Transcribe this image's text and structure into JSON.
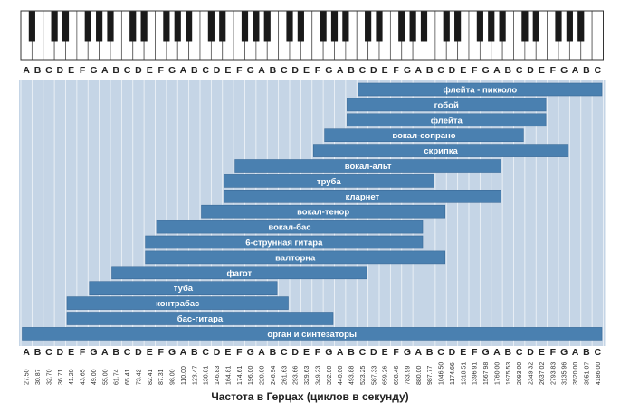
{
  "chart_data": {
    "type": "bar",
    "orientation": "horizontal-range",
    "xlabel": "Частота в Герцах (циклов в секунду)",
    "note_names": [
      "A",
      "B",
      "C",
      "D",
      "E",
      "F",
      "G",
      "A",
      "B",
      "C",
      "D",
      "E",
      "F",
      "G",
      "A",
      "B",
      "C",
      "D",
      "E",
      "F",
      "G",
      "A",
      "B",
      "C",
      "D",
      "E",
      "F",
      "G",
      "A",
      "B",
      "C",
      "D",
      "E",
      "F",
      "G",
      "A",
      "B",
      "C",
      "D",
      "E",
      "F",
      "G",
      "A",
      "B",
      "C",
      "D",
      "E",
      "F",
      "G",
      "A",
      "B",
      "C"
    ],
    "frequencies": [
      "27.50",
      "30.87",
      "32.70",
      "36.71",
      "41.20",
      "43.65",
      "49.00",
      "55.00",
      "61.74",
      "65.41",
      "73.42",
      "82.41",
      "87.31",
      "98.00",
      "110.00",
      "123.47",
      "130.81",
      "146.83",
      "164.81",
      "174.61",
      "196.00",
      "220.00",
      "246.94",
      "261.63",
      "293.66",
      "329.63",
      "349.23",
      "392.00",
      "440.00",
      "493.88",
      "523.25",
      "587.33",
      "659.26",
      "698.46",
      "783.99",
      "880.00",
      "987.77",
      "1046.50",
      "1174.66",
      "1318.51",
      "1396.91",
      "1567.98",
      "1760.00",
      "1975.53",
      "2093.00",
      "2349.32",
      "2637.02",
      "2793.83",
      "3135.96",
      "3520.00",
      "3951.07",
      "4186.00"
    ],
    "instruments": [
      {
        "name": "флейта - пикколо",
        "low": "C",
        "high": "C"
      },
      {
        "name": "гобой",
        "low": "B",
        "high": "G"
      },
      {
        "name": "флейта",
        "low": "B",
        "high": "G"
      },
      {
        "name": "вокал-сопрано",
        "low": "B",
        "high": "E"
      },
      {
        "name": "скрипка",
        "low": "G",
        "high": "A"
      },
      {
        "name": "вокал-альт",
        "low": "F",
        "high": "F"
      },
      {
        "name": "труба",
        "low": "E",
        "high": "B"
      },
      {
        "name": "кларнет",
        "low": "E",
        "high": "F"
      },
      {
        "name": "вокал-тенор",
        "low": "C",
        "high": "C"
      },
      {
        "name": "вокал-бас",
        "low": "E",
        "high": "G"
      },
      {
        "name": "6-струнная гитара",
        "low": "E",
        "high": "G"
      },
      {
        "name": "валторна",
        "low": "E",
        "high": "B"
      },
      {
        "name": "фагот",
        "low": "B",
        "high": "C"
      },
      {
        "name": "туба",
        "low": "G",
        "high": "F"
      },
      {
        "name": "контрабас",
        "low": "E",
        "high": "G"
      },
      {
        "name": "бас-гитара",
        "low": "E",
        "high": "A"
      },
      {
        "name": "орган и синтезаторы",
        "low": "A",
        "high": "C"
      }
    ],
    "colors": {
      "panel": "#c5d5e6",
      "bar": "#4a80b0",
      "bar_edge": "#3a6a98",
      "gridline": "#ffffff",
      "white_key": "#ffffff",
      "black_key": "#1a1a1a"
    }
  }
}
